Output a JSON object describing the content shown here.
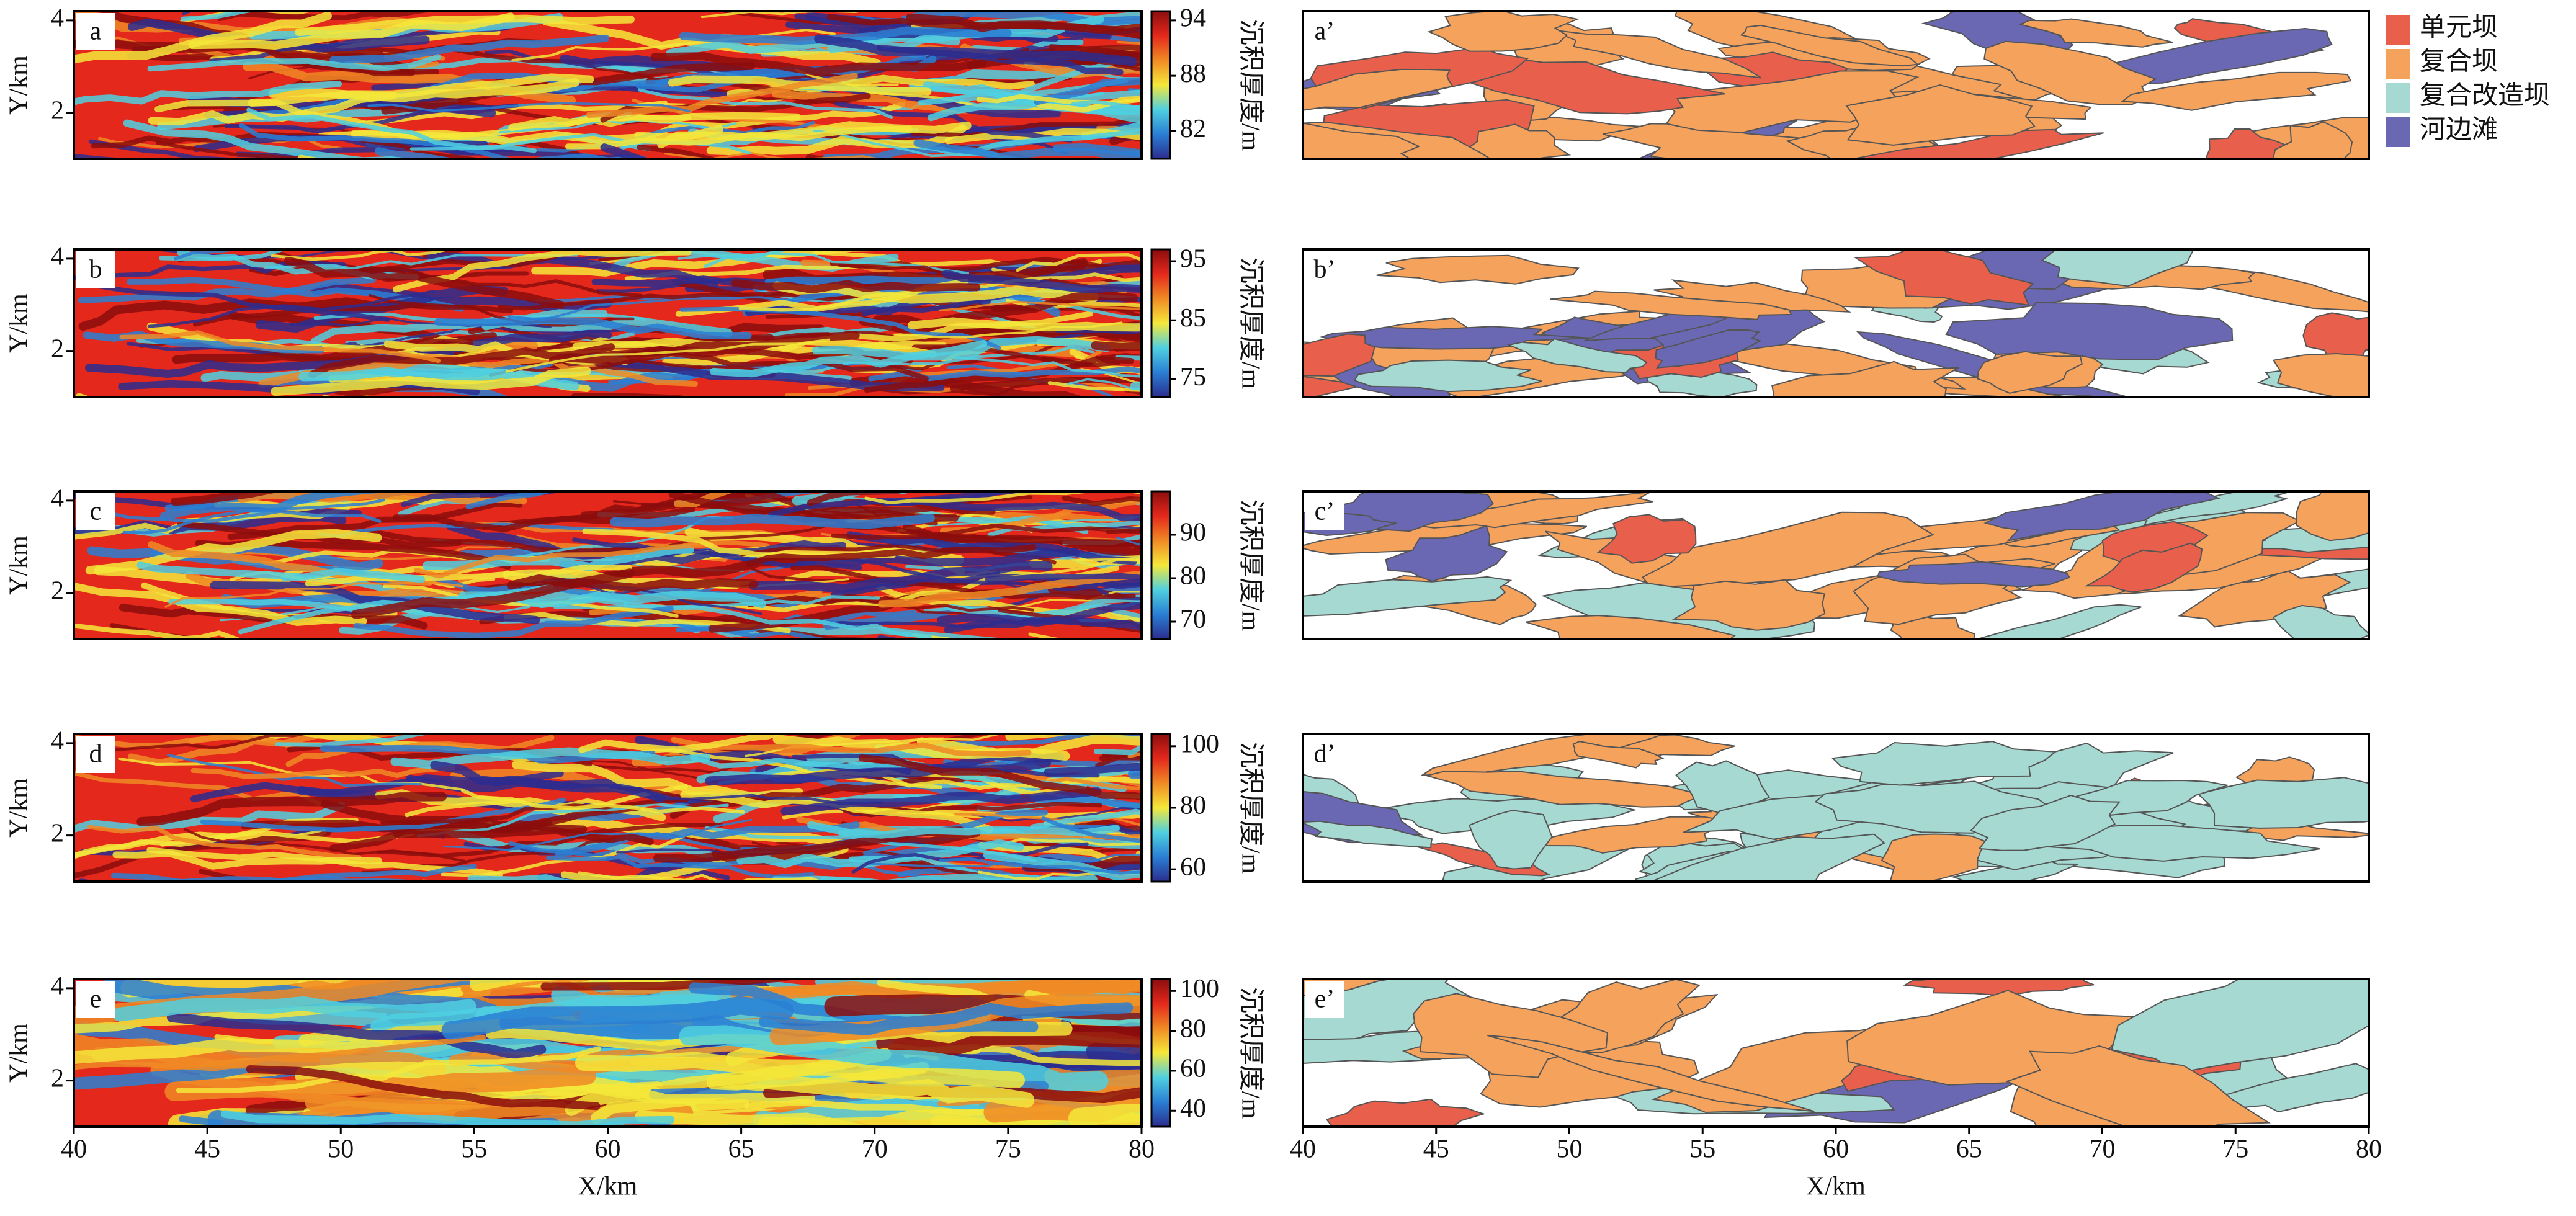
{
  "chart_data": [
    {
      "type": "heatmap",
      "panel": "a",
      "ylabel": "Y/km",
      "ylim": [
        1,
        4.2
      ],
      "yticks": [
        2,
        4
      ],
      "colorbar": {
        "label": "沉积厚度/m",
        "lim": [
          79,
          95
        ],
        "ticks": [
          82,
          88,
          94
        ],
        "colors": [
          "#2b2d8f",
          "#2a7fd4",
          "#4fd0e0",
          "#f5e83a",
          "#f08a24",
          "#e4281c",
          "#8b0d0d"
        ]
      }
    },
    {
      "type": "heatmap",
      "panel": "b",
      "ylabel": "Y/km",
      "ylim": [
        1,
        4.2
      ],
      "yticks": [
        2,
        4
      ],
      "colorbar": {
        "label": "沉积厚度/m",
        "lim": [
          72,
          97
        ],
        "ticks": [
          75,
          85,
          95
        ],
        "colors": [
          "#2b2d8f",
          "#2a7fd4",
          "#4fd0e0",
          "#f5e83a",
          "#f08a24",
          "#e4281c",
          "#8b0d0d"
        ]
      }
    },
    {
      "type": "heatmap",
      "panel": "c",
      "ylabel": "Y/km",
      "ylim": [
        1,
        4.2
      ],
      "yticks": [
        2,
        4
      ],
      "colorbar": {
        "label": "沉积厚度/m",
        "lim": [
          66,
          100
        ],
        "ticks": [
          70,
          80,
          90
        ],
        "colors": [
          "#2b2d8f",
          "#2a7fd4",
          "#4fd0e0",
          "#f5e83a",
          "#f08a24",
          "#e4281c",
          "#8b0d0d"
        ]
      }
    },
    {
      "type": "heatmap",
      "panel": "d",
      "ylabel": "Y/km",
      "ylim": [
        1,
        4.2
      ],
      "yticks": [
        2,
        4
      ],
      "colorbar": {
        "label": "沉积厚度/m",
        "lim": [
          56,
          104
        ],
        "ticks": [
          60,
          80,
          100
        ],
        "colors": [
          "#2b2d8f",
          "#2a7fd4",
          "#4fd0e0",
          "#f5e83a",
          "#f08a24",
          "#e4281c",
          "#8b0d0d"
        ]
      }
    },
    {
      "type": "heatmap",
      "panel": "e",
      "ylabel": "Y/km",
      "xlabel": "X/km",
      "ylim": [
        1,
        4.2
      ],
      "yticks": [
        2,
        4
      ],
      "xlim": [
        40,
        80
      ],
      "xticks": [
        40,
        45,
        50,
        55,
        60,
        65,
        70,
        75,
        80
      ],
      "colorbar": {
        "label": "沉积厚度/m",
        "lim": [
          32,
          106
        ],
        "ticks": [
          40,
          60,
          80,
          100
        ],
        "colors": [
          "#2b2d8f",
          "#2a7fd4",
          "#4fd0e0",
          "#f5e83a",
          "#f08a24",
          "#e4281c",
          "#8b0d0d"
        ]
      }
    },
    {
      "type": "map",
      "panel": "a’",
      "series": [
        {
          "name": "单元坝",
          "color": "#e8604c"
        },
        {
          "name": "复合坝",
          "color": "#f5a25d"
        },
        {
          "name": "复合改造坝",
          "color": "#a6d9d2"
        },
        {
          "name": "河边滩",
          "color": "#6a68b3"
        }
      ]
    },
    {
      "type": "map",
      "panel": "b’"
    },
    {
      "type": "map",
      "panel": "c’"
    },
    {
      "type": "map",
      "panel": "d’"
    },
    {
      "type": "map",
      "panel": "e’",
      "xlabel": "X/km",
      "xlim": [
        40,
        80
      ],
      "xticks": [
        40,
        45,
        50,
        55,
        60,
        65,
        70,
        75,
        80
      ]
    }
  ]
}
